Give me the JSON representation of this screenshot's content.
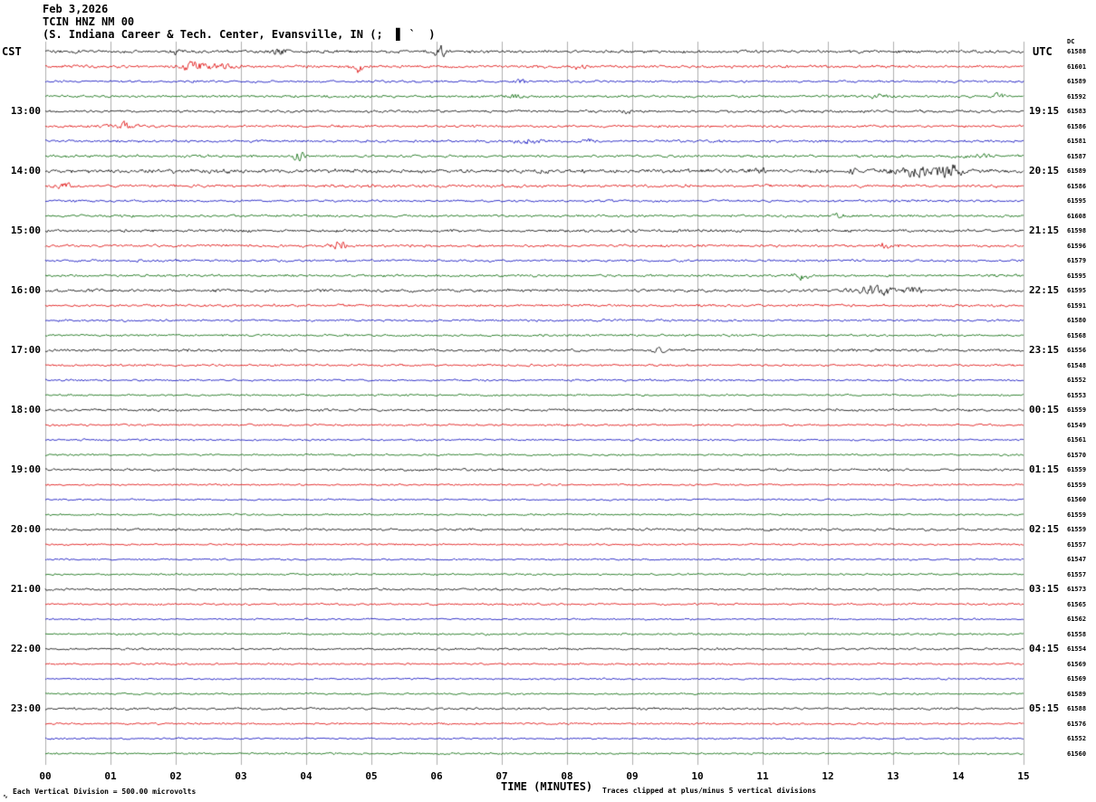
{
  "header": {
    "date": "Feb 3,2026",
    "station": "TCIN HNZ NM 00",
    "location": "(S. Indiana Career & Tech. Center, Evansville, IN (;  ▋ `  )",
    "left_tz": "CST",
    "right_tz": "UTC",
    "dc_label": "DC"
  },
  "x_axis": {
    "title": "TIME (MINUTES)",
    "ticks": [
      "00",
      "01",
      "02",
      "03",
      "04",
      "05",
      "06",
      "07",
      "08",
      "09",
      "10",
      "11",
      "12",
      "13",
      "14",
      "15"
    ]
  },
  "footer": {
    "left_note": "Each Vertical Division =  500.00 microvolts",
    "right_note": "Traces clipped at plus/minus 5 vertical divisions",
    "mark": "∿"
  },
  "colors": {
    "black": "#000000",
    "red": "#dd0000",
    "blue": "#0000bb",
    "green": "#006600",
    "grid": "#7a7a7a"
  },
  "chart_data": {
    "type": "line",
    "x_range_minutes": [
      0,
      15
    ],
    "minutes_per_line": 15,
    "traces_per_hour": 4,
    "microvolts_per_division": 500.0,
    "clip_divisions": 5,
    "color_cycle": [
      "black",
      "red",
      "blue",
      "green"
    ],
    "rows": [
      {
        "color": "black",
        "cst": "",
        "utc": "",
        "dc": "61588",
        "amp": 2.0,
        "events": [
          [
            2.0,
            3,
            0.1
          ],
          [
            3.6,
            4,
            0.12
          ],
          [
            6.05,
            8,
            0.1
          ]
        ]
      },
      {
        "color": "red",
        "cst": "",
        "utc": "",
        "dc": "61601",
        "amp": 1.9,
        "events": [
          [
            2.3,
            6,
            0.25
          ],
          [
            2.8,
            4,
            0.15
          ],
          [
            4.8,
            8,
            0.08
          ],
          [
            8.2,
            3,
            0.1
          ]
        ]
      },
      {
        "color": "blue",
        "cst": "",
        "utc": "",
        "dc": "61589",
        "amp": 1.6,
        "events": [
          [
            7.3,
            2.5,
            0.1
          ]
        ]
      },
      {
        "color": "green",
        "cst": "",
        "utc": "",
        "dc": "61592",
        "amp": 1.7,
        "events": [
          [
            7.2,
            2.5,
            0.1
          ],
          [
            12.8,
            3,
            0.12
          ],
          [
            14.6,
            3,
            0.1
          ]
        ]
      },
      {
        "color": "black",
        "cst": "13:00",
        "utc": "19:15",
        "dc": "61583",
        "amp": 1.8,
        "events": [
          [
            8.9,
            2.5,
            0.08
          ]
        ]
      },
      {
        "color": "red",
        "cst": "",
        "utc": "",
        "dc": "61586",
        "amp": 1.7,
        "events": [
          [
            1.2,
            6,
            0.18
          ]
        ]
      },
      {
        "color": "blue",
        "cst": "",
        "utc": "",
        "dc": "61581",
        "amp": 1.7,
        "events": [
          [
            7.4,
            3.5,
            0.2
          ],
          [
            8.3,
            2.5,
            0.1
          ]
        ]
      },
      {
        "color": "green",
        "cst": "",
        "utc": "",
        "dc": "61587",
        "amp": 1.8,
        "events": [
          [
            3.9,
            7,
            0.1
          ],
          [
            14.3,
            3,
            0.3
          ]
        ]
      },
      {
        "color": "black",
        "cst": "14:00",
        "utc": "20:15",
        "dc": "61589",
        "amp": 2.6,
        "events": [
          [
            10.9,
            3.5,
            0.15
          ],
          [
            12.4,
            2.5,
            0.1
          ],
          [
            13.5,
            7,
            0.45
          ],
          [
            13.9,
            5,
            0.2
          ]
        ]
      },
      {
        "color": "red",
        "cst": "",
        "utc": "",
        "dc": "61586",
        "amp": 2.0,
        "events": [
          [
            0.3,
            3,
            0.1
          ]
        ]
      },
      {
        "color": "blue",
        "cst": "",
        "utc": "",
        "dc": "61595",
        "amp": 1.6,
        "events": []
      },
      {
        "color": "green",
        "cst": "",
        "utc": "",
        "dc": "61608",
        "amp": 1.7,
        "events": [
          [
            12.2,
            3,
            0.1
          ]
        ]
      },
      {
        "color": "black",
        "cst": "15:00",
        "utc": "21:15",
        "dc": "61598",
        "amp": 1.9,
        "events": [
          [
            9.0,
            2.5,
            0.1
          ]
        ]
      },
      {
        "color": "red",
        "cst": "",
        "utc": "",
        "dc": "61596",
        "amp": 1.8,
        "events": [
          [
            4.5,
            6,
            0.12
          ],
          [
            12.9,
            5,
            0.12
          ]
        ]
      },
      {
        "color": "blue",
        "cst": "",
        "utc": "",
        "dc": "61579",
        "amp": 1.6,
        "events": []
      },
      {
        "color": "green",
        "cst": "",
        "utc": "",
        "dc": "61595",
        "amp": 1.7,
        "events": [
          [
            11.6,
            5,
            0.12
          ]
        ]
      },
      {
        "color": "black",
        "cst": "16:00",
        "utc": "22:15",
        "dc": "61595",
        "amp": 2.0,
        "events": [
          [
            12.75,
            7,
            0.3
          ],
          [
            13.3,
            4,
            0.15
          ]
        ]
      },
      {
        "color": "red",
        "cst": "",
        "utc": "",
        "dc": "61591",
        "amp": 1.7,
        "events": []
      },
      {
        "color": "blue",
        "cst": "",
        "utc": "",
        "dc": "61580",
        "amp": 1.5,
        "events": []
      },
      {
        "color": "green",
        "cst": "",
        "utc": "",
        "dc": "61568",
        "amp": 1.5,
        "events": []
      },
      {
        "color": "black",
        "cst": "17:00",
        "utc": "23:15",
        "dc": "61556",
        "amp": 1.8,
        "events": [
          [
            9.4,
            2.5,
            0.1
          ]
        ]
      },
      {
        "color": "red",
        "cst": "",
        "utc": "",
        "dc": "61548",
        "amp": 1.5,
        "events": []
      },
      {
        "color": "blue",
        "cst": "",
        "utc": "",
        "dc": "61552",
        "amp": 1.4,
        "events": []
      },
      {
        "color": "green",
        "cst": "",
        "utc": "",
        "dc": "61553",
        "amp": 1.4,
        "events": []
      },
      {
        "color": "black",
        "cst": "18:00",
        "utc": "00:15",
        "dc": "61559",
        "amp": 1.7,
        "events": []
      },
      {
        "color": "red",
        "cst": "",
        "utc": "",
        "dc": "61549",
        "amp": 1.4,
        "events": []
      },
      {
        "color": "blue",
        "cst": "",
        "utc": "",
        "dc": "61561",
        "amp": 1.3,
        "events": []
      },
      {
        "color": "green",
        "cst": "",
        "utc": "",
        "dc": "61570",
        "amp": 1.3,
        "events": []
      },
      {
        "color": "black",
        "cst": "19:00",
        "utc": "01:15",
        "dc": "61559",
        "amp": 1.6,
        "events": [
          [
            12.9,
            2.5,
            0.1
          ]
        ]
      },
      {
        "color": "red",
        "cst": "",
        "utc": "",
        "dc": "61559",
        "amp": 1.3,
        "events": []
      },
      {
        "color": "blue",
        "cst": "",
        "utc": "",
        "dc": "61560",
        "amp": 1.2,
        "events": []
      },
      {
        "color": "green",
        "cst": "",
        "utc": "",
        "dc": "61559",
        "amp": 1.3,
        "events": []
      },
      {
        "color": "black",
        "cst": "20:00",
        "utc": "02:15",
        "dc": "61559",
        "amp": 1.6,
        "events": []
      },
      {
        "color": "red",
        "cst": "",
        "utc": "",
        "dc": "61557",
        "amp": 1.3,
        "events": []
      },
      {
        "color": "blue",
        "cst": "",
        "utc": "",
        "dc": "61547",
        "amp": 1.2,
        "events": []
      },
      {
        "color": "green",
        "cst": "",
        "utc": "",
        "dc": "61557",
        "amp": 1.3,
        "events": []
      },
      {
        "color": "black",
        "cst": "21:00",
        "utc": "03:15",
        "dc": "61573",
        "amp": 1.6,
        "events": []
      },
      {
        "color": "red",
        "cst": "",
        "utc": "",
        "dc": "61565",
        "amp": 1.4,
        "events": []
      },
      {
        "color": "blue",
        "cst": "",
        "utc": "",
        "dc": "61562",
        "amp": 1.2,
        "events": []
      },
      {
        "color": "green",
        "cst": "",
        "utc": "",
        "dc": "61558",
        "amp": 1.3,
        "events": []
      },
      {
        "color": "black",
        "cst": "22:00",
        "utc": "04:15",
        "dc": "61554",
        "amp": 1.5,
        "events": []
      },
      {
        "color": "red",
        "cst": "",
        "utc": "",
        "dc": "61569",
        "amp": 1.3,
        "events": []
      },
      {
        "color": "blue",
        "cst": "",
        "utc": "",
        "dc": "61569",
        "amp": 1.2,
        "events": []
      },
      {
        "color": "green",
        "cst": "",
        "utc": "",
        "dc": "61589",
        "amp": 1.3,
        "events": []
      },
      {
        "color": "black",
        "cst": "23:00",
        "utc": "05:15",
        "dc": "61588",
        "amp": 1.6,
        "events": []
      },
      {
        "color": "red",
        "cst": "",
        "utc": "",
        "dc": "61576",
        "amp": 1.4,
        "events": []
      },
      {
        "color": "blue",
        "cst": "",
        "utc": "",
        "dc": "61552",
        "amp": 1.2,
        "events": []
      },
      {
        "color": "green",
        "cst": "",
        "utc": "",
        "dc": "61560",
        "amp": 1.3,
        "events": []
      }
    ]
  }
}
